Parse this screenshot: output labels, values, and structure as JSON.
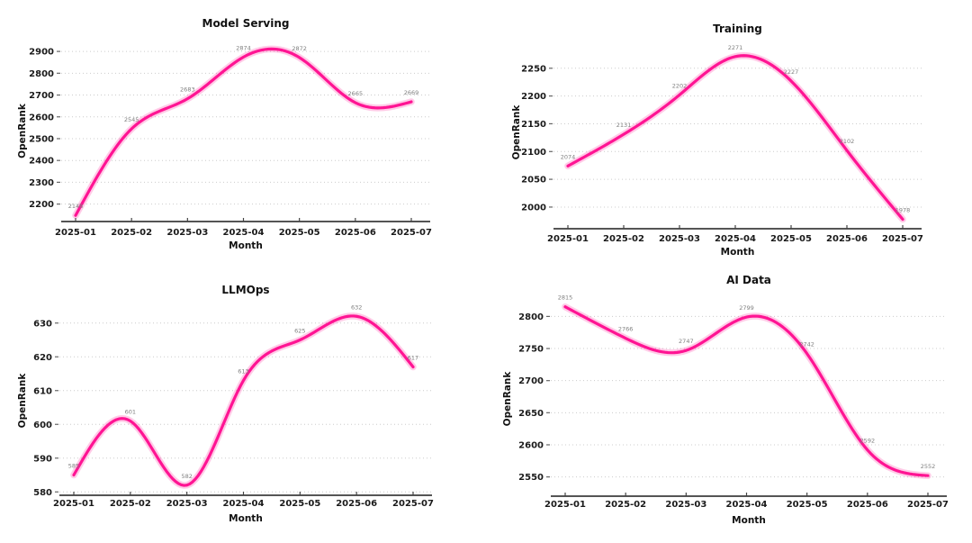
{
  "figure": {
    "background": "#ffffff",
    "grid_layout": "2x2"
  },
  "chart_data": [
    {
      "type": "line",
      "title": "Model Serving",
      "xlabel": "Month",
      "ylabel": "OpenRank",
      "x": [
        "2025-01",
        "2025-02",
        "2025-03",
        "2025-04",
        "2025-05",
        "2025-06",
        "2025-07"
      ],
      "values": [
        2148,
        2545,
        2683,
        2874,
        2872,
        2665,
        2669
      ],
      "yticks": [
        2200,
        2300,
        2400,
        2500,
        2600,
        2700,
        2800,
        2900
      ],
      "ylim": [
        2120,
        2950
      ],
      "line_color": "#ff1493",
      "label_color": "#7f7f7f",
      "grid": true,
      "legend": "none"
    },
    {
      "type": "line",
      "title": "Training",
      "xlabel": "Month",
      "ylabel": "OpenRank",
      "x": [
        "2025-01",
        "2025-02",
        "2025-03",
        "2025-04",
        "2025-05",
        "2025-06",
        "2025-07"
      ],
      "values": [
        2074,
        2131,
        2202,
        2271,
        2227,
        2102,
        1978
      ],
      "yticks": [
        2000,
        2050,
        2100,
        2150,
        2200,
        2250
      ],
      "ylim": [
        1961,
        2308
      ],
      "line_color": "#ff1493",
      "label_color": "#7f7f7f",
      "grid": true,
      "legend": "none"
    },
    {
      "type": "line",
      "title": "LLMOps",
      "xlabel": "Month",
      "ylabel": "OpenRank",
      "x": [
        "2025-01",
        "2025-02",
        "2025-03",
        "2025-04",
        "2025-05",
        "2025-06",
        "2025-07"
      ],
      "values": [
        585,
        601,
        582,
        613,
        625,
        632,
        617
      ],
      "yticks": [
        580,
        590,
        600,
        610,
        620,
        630
      ],
      "ylim": [
        579,
        635
      ],
      "line_color": "#ff1493",
      "label_color": "#7f7f7f",
      "grid": true,
      "legend": "none"
    },
    {
      "type": "line",
      "title": "AI Data",
      "xlabel": "Month",
      "ylabel": "OpenRank",
      "x": [
        "2025-01",
        "2025-02",
        "2025-03",
        "2025-04",
        "2025-05",
        "2025-06",
        "2025-07"
      ],
      "values": [
        2815,
        2766,
        2747,
        2799,
        2742,
        2592,
        2552
      ],
      "yticks": [
        2550,
        2600,
        2650,
        2700,
        2750,
        2800
      ],
      "ylim": [
        2520,
        2823
      ],
      "line_color": "#ff1493",
      "label_color": "#7f7f7f",
      "grid": true,
      "legend": "none"
    }
  ],
  "style_tokens": {
    "grid_color": "#cccccc",
    "spine_color": "#555555",
    "tick_color": "#666666",
    "text_color": "#111111"
  }
}
